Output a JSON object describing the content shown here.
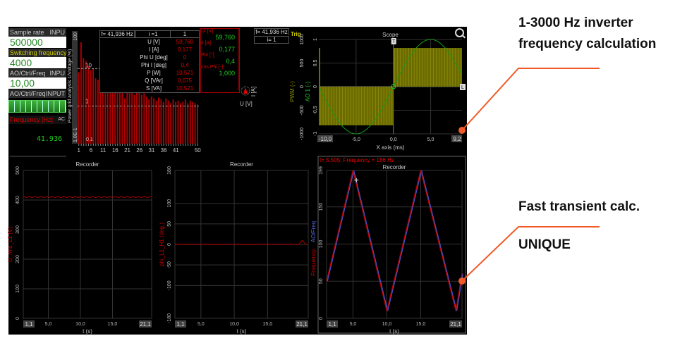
{
  "left_panel": {
    "sample_rate": {
      "label": "Sample rate",
      "tag": "INPU",
      "value": "500000"
    },
    "switching_frequency": {
      "label": "Switching frequency",
      "value": "4000"
    },
    "ao_ctrl_freq": {
      "label": "AO/Ctrl/Freq",
      "tag": "INPU",
      "value": "10,00"
    },
    "ao_ctrl_freq_slider": {
      "label": "AO/Ctrl/Freq",
      "tag": "INPUT",
      "level": 0.5
    },
    "frequency": {
      "label": "Frequency [Hz]",
      "tag": "AC",
      "value": "41.936"
    }
  },
  "harmonics": {
    "ylabel": "Power grid analysis 1/Voltage (%)",
    "ytick_labels": [
      "100",
      "10",
      "1",
      "1,0E-1",
      "0,1"
    ],
    "xtick_labels": [
      "1",
      "6",
      "11",
      "16",
      "21",
      "26",
      "31",
      "36",
      "41",
      "50"
    ],
    "freq_label": "f= 41,936 Hz",
    "table": {
      "header": [
        "i =1",
        "1"
      ],
      "rows": [
        [
          "U [V]",
          "59,760"
        ],
        [
          "I [A]",
          "0,177"
        ],
        [
          "Phi U [deg]",
          "0"
        ],
        [
          "Phi I [deg]",
          "0,4"
        ],
        [
          "P [W]",
          "10,571"
        ],
        [
          "Q [VAr]",
          "0,075"
        ],
        [
          "S [VA]",
          "10,571"
        ]
      ]
    }
  },
  "phasor": {
    "readouts": [
      [
        "Ui [V]",
        "59,760"
      ],
      [
        "Ii [A]",
        "0,177"
      ],
      [
        "Phi [°]",
        "0,4"
      ],
      [
        "cos Phi [-]",
        "1,000"
      ]
    ],
    "freq_label": "f= 41,936 Hz",
    "index_label": "i= 1",
    "u_label": "U [V]",
    "i_label": "I [A]"
  },
  "scope": {
    "title": "Scope",
    "trig": "Trig",
    "xlabel": "X axis (ms)",
    "xmin_label": "-10,0",
    "xmax_label": "9,2",
    "xticks": [
      "-5,0",
      "0,0",
      "5,0"
    ],
    "pwm_label": "PWM (-)",
    "ao_label": "AO 1 (-)",
    "pwm_ticks": [
      "1000",
      "500",
      "0",
      "-500",
      "-1000"
    ],
    "ao_ticks": [
      "1",
      "0,5",
      "0",
      "-0,5",
      "-1"
    ],
    "markers": [
      "T",
      "L"
    ]
  },
  "recorders": [
    {
      "title": "Recorder",
      "ylabel": "U_rms_L1 (V)",
      "yticks": [
        "500",
        "400",
        "300",
        "200",
        "100",
        "0"
      ],
      "xlabel": "t (s)",
      "xmin_label": "1,1",
      "xmax_label": "21,1",
      "xticks": [
        "5,0",
        "10,0",
        "15,0"
      ]
    },
    {
      "title": "Recorder",
      "ylabel": "phi_L1_H1 (deg.)",
      "yticks": [
        "180",
        "100",
        "50",
        "0",
        "-50",
        "-100",
        "-180"
      ],
      "xlabel": "t (s)",
      "xmin_label": "1,1",
      "xmax_label": "21,1",
      "xticks": [
        "5,0",
        "10,0",
        "15,0"
      ]
    },
    {
      "title": "Recorder",
      "cursor_label": "t= 5,505; Frequency = 186 Hz",
      "ylabel_a": "Frequency,",
      "ylabel_b": "AO/Freq",
      "yticks": [
        "199",
        "150",
        "100",
        "50",
        "0"
      ],
      "xlabel": "t (s)",
      "xmin_label": "1,1",
      "xmax_label": "21,1",
      "xticks": [
        "5,0",
        "10,0",
        "15,0"
      ]
    }
  ],
  "annotations": {
    "top_line1": "1-3000 Hz inverter",
    "top_line2": "frequency calculation",
    "bottom_line1": "Fast transient calc.",
    "bottom_line2": "UNIQUE"
  },
  "colors": {
    "accent": "#f05a28",
    "red": "#c00000",
    "green": "#22cc22",
    "yellow": "#8a8a00",
    "blue": "#4455cc"
  }
}
